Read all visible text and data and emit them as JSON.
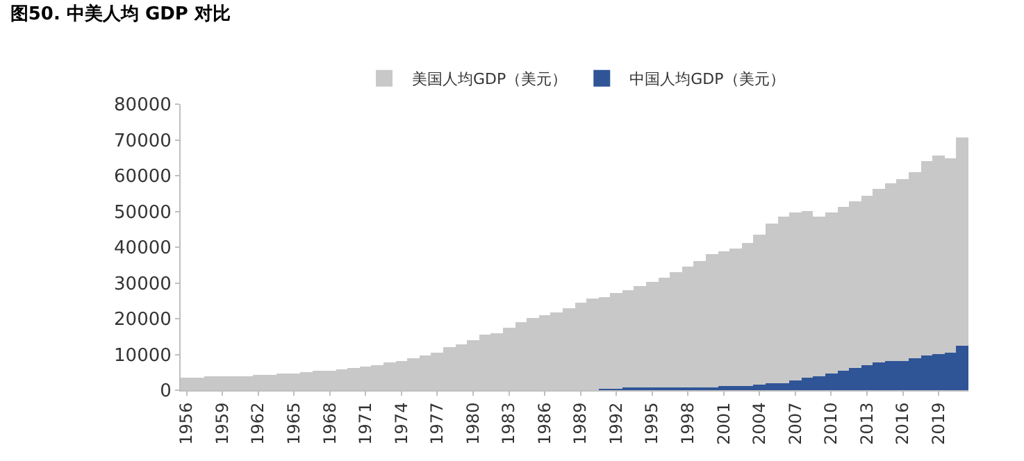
{
  "chart_data": {
    "type": "bar",
    "title": "图50. 中美人均 GDP 对比",
    "categories": [
      "1956",
      null,
      null,
      "1959",
      null,
      null,
      "1962",
      null,
      null,
      "1965",
      null,
      null,
      "1968",
      null,
      null,
      "1971",
      null,
      null,
      "1974",
      null,
      null,
      "1977",
      null,
      null,
      "1980",
      null,
      null,
      "1983",
      null,
      null,
      "1986",
      null,
      null,
      "1989",
      null,
      null,
      "1992",
      null,
      null,
      "1995",
      null,
      null,
      "1998",
      null,
      null,
      "2001",
      null,
      null,
      "2004",
      null,
      null,
      "2007",
      null,
      null,
      "2010",
      null,
      null,
      "2013",
      null,
      null,
      "2016",
      null,
      null,
      "2019",
      null,
      null
    ],
    "series": [
      {
        "name": "美国人均GDP（美元）",
        "color": "#c8c8c8",
        "values": [
          3500,
          3600,
          3700,
          3800,
          3900,
          4000,
          4100,
          4300,
          4500,
          4700,
          5000,
          5300,
          5600,
          6000,
          6200,
          6500,
          7100,
          7800,
          8200,
          8900,
          9700,
          10600,
          11900,
          13000,
          14000,
          15400,
          16000,
          17300,
          19000,
          20100,
          20800,
          21800,
          23100,
          24500,
          25500,
          26000,
          27000,
          28000,
          29300,
          30200,
          31500,
          33000,
          34500,
          36300,
          38000,
          38800,
          39500,
          41000,
          43500,
          46500,
          48400,
          49700,
          50000,
          48600,
          49800,
          51300,
          53000,
          54500,
          56400,
          58000,
          59100,
          61000,
          63900,
          65800,
          64800,
          70800
        ]
      },
      {
        "name": "中国人均GDP（美元）",
        "color": "#2f5597",
        "values": [
          0,
          0,
          0,
          0,
          0,
          0,
          0,
          0,
          0,
          0,
          0,
          0,
          0,
          0,
          0,
          0,
          0,
          0,
          0,
          0,
          0,
          0,
          0,
          0,
          0,
          0,
          0,
          0,
          0,
          0,
          0,
          0,
          0,
          0,
          0,
          300,
          350,
          400,
          450,
          500,
          600,
          700,
          800,
          850,
          950,
          1050,
          1150,
          1300,
          1500,
          1750,
          2100,
          2700,
          3500,
          3800,
          4500,
          5600,
          6300,
          7000,
          7600,
          8000,
          8100,
          8800,
          9900,
          10100,
          10400,
          12600
        ]
      }
    ],
    "ylim": [
      0,
      80000
    ],
    "yticks": [
      0,
      10000,
      20000,
      30000,
      40000,
      50000,
      60000,
      70000,
      80000
    ],
    "legend": "top"
  }
}
